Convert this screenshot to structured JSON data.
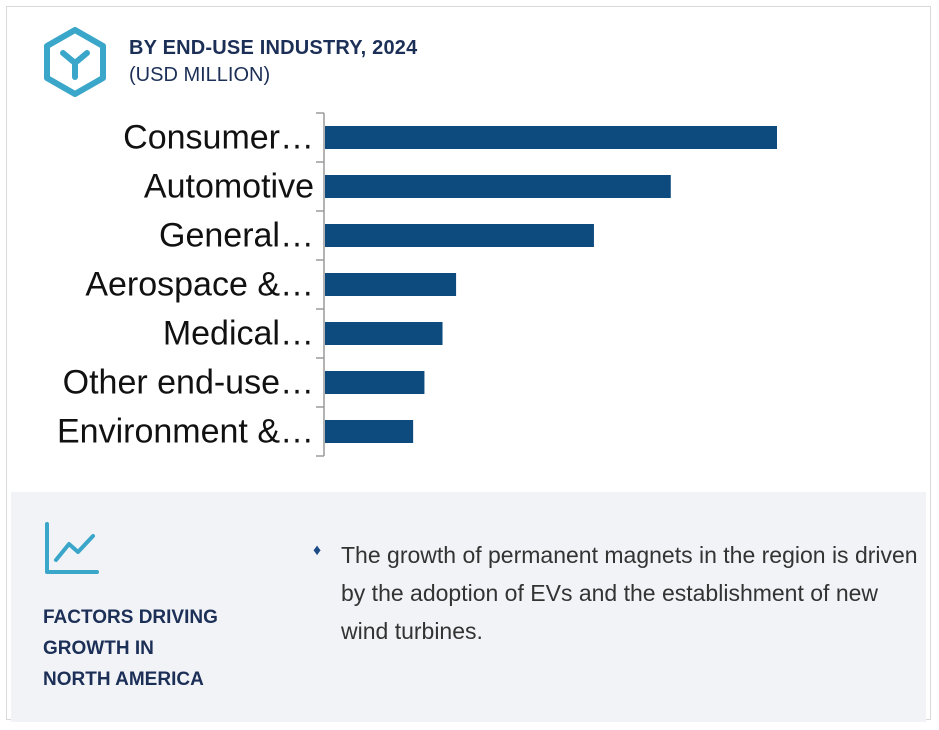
{
  "header": {
    "title": "BY END-USE INDUSTRY, 2024",
    "subtitle": "(USD MILLION)",
    "icon": "hexagon-y-logo-icon"
  },
  "chart_data": {
    "type": "bar",
    "orientation": "horizontal",
    "categories": [
      "Consumer…",
      "Automotive",
      "General…",
      "Aerospace &…",
      "Medical…",
      "Other end-use…",
      "Environment &…"
    ],
    "values": [
      100,
      76.5,
      59.5,
      29,
      26,
      22,
      19.5
    ],
    "bar_color": "#0d4a7d",
    "grid": false,
    "legend": "none",
    "xlim": [
      0,
      100
    ]
  },
  "panel": {
    "icon": "trend-line-chart-icon",
    "factors_title_lines": [
      "FACTORS DRIVING",
      "GROWTH IN",
      "NORTH AMERICA"
    ],
    "bullet_symbol": "♦",
    "bullet_text": "The growth of permanent magnets in the region is driven by the adoption of EVs and the establishment of new wind turbines."
  },
  "colors": {
    "accent": "#3aa6c9",
    "navy": "#1c2f57",
    "bar": "#0d4a7d",
    "panel_bg": "#f1f3f7"
  }
}
